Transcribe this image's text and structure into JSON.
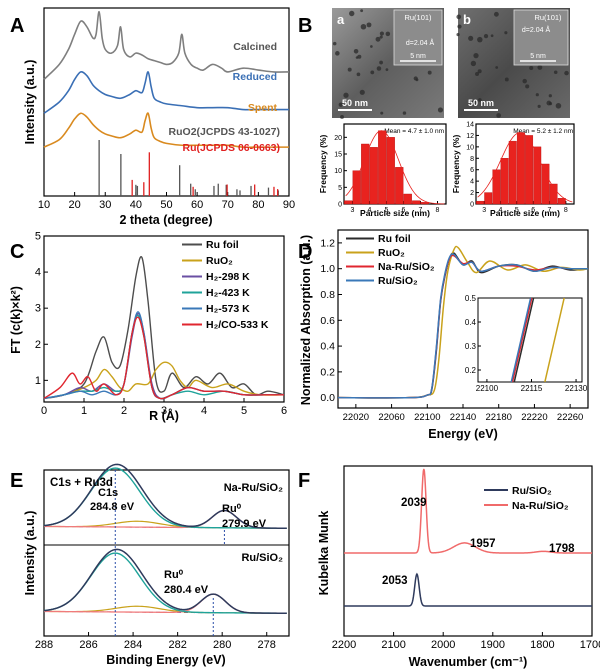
{
  "panel_letters": [
    "A",
    "B",
    "C",
    "D",
    "E",
    "F"
  ],
  "chart_data": [
    {
      "panel": "A",
      "type": "line",
      "xlabel": "2 theta (degree)",
      "ylabel": "Intensity (a.u.)",
      "xlim": [
        10,
        90
      ],
      "xticks": [
        10,
        20,
        30,
        40,
        50,
        60,
        70,
        80,
        90
      ],
      "series": [
        {
          "name": "Calcined",
          "color": "#7f7f7f",
          "x": [
            10,
            15,
            18,
            20,
            22,
            24,
            26,
            27,
            28,
            29,
            30,
            32,
            34,
            35,
            36,
            38,
            40,
            42,
            44,
            46,
            48,
            50,
            52,
            54,
            55,
            56,
            58,
            60,
            62,
            65,
            68,
            70,
            75,
            80,
            85,
            90
          ],
          "y": [
            0.62,
            0.7,
            0.78,
            0.86,
            0.93,
            0.9,
            0.84,
            0.86,
            0.98,
            0.84,
            0.78,
            0.76,
            0.8,
            0.9,
            0.78,
            0.74,
            0.76,
            0.75,
            0.73,
            0.72,
            0.71,
            0.7,
            0.71,
            0.76,
            0.86,
            0.76,
            0.7,
            0.68,
            0.67,
            0.7,
            0.68,
            0.66,
            0.68,
            0.67,
            0.66,
            0.66
          ]
        },
        {
          "name": "Reduced",
          "color": "#3a6fb5",
          "x": [
            10,
            15,
            18,
            20,
            22,
            24,
            26,
            28,
            30,
            32,
            35,
            38,
            40,
            42,
            43,
            44,
            45,
            46,
            48,
            50,
            55,
            60,
            65,
            70,
            75,
            80,
            85,
            90
          ],
          "y": [
            0.44,
            0.5,
            0.56,
            0.62,
            0.66,
            0.64,
            0.59,
            0.56,
            0.54,
            0.53,
            0.52,
            0.54,
            0.56,
            0.55,
            0.6,
            0.66,
            0.58,
            0.52,
            0.5,
            0.49,
            0.48,
            0.47,
            0.47,
            0.47,
            0.46,
            0.46,
            0.46,
            0.46
          ]
        },
        {
          "name": "Spent",
          "color": "#d98a1f",
          "x": [
            10,
            15,
            18,
            20,
            22,
            24,
            26,
            28,
            30,
            32,
            35,
            38,
            40,
            42,
            43,
            44,
            45,
            46,
            48,
            50,
            55,
            60,
            65,
            70,
            75,
            80,
            85,
            90
          ],
          "y": [
            0.26,
            0.3,
            0.36,
            0.41,
            0.44,
            0.42,
            0.38,
            0.35,
            0.33,
            0.32,
            0.31,
            0.33,
            0.35,
            0.34,
            0.4,
            0.44,
            0.36,
            0.31,
            0.29,
            0.28,
            0.27,
            0.27,
            0.27,
            0.27,
            0.26,
            0.26,
            0.26,
            0.26
          ]
        }
      ],
      "reference_labels": [
        "RuO2(JCPDS 43-1027)",
        "Ru(JCPDS 06-0663)"
      ],
      "reference_colors": [
        "#555555",
        "#e02020"
      ],
      "ref_ruo2": {
        "x": [
          28.0,
          35.1,
          40.0,
          40.5,
          54.3,
          57.9,
          59.4,
          65.5,
          66.9,
          69.5,
          73.0,
          74.0,
          77.6,
          83.3,
          86.5
        ],
        "h": [
          1.0,
          0.75,
          0.2,
          0.18,
          0.55,
          0.22,
          0.12,
          0.18,
          0.22,
          0.2,
          0.12,
          0.1,
          0.18,
          0.15,
          0.1
        ]
      },
      "ref_ru": {
        "x": [
          38.4,
          42.2,
          44.0,
          58.3,
          69.4,
          78.4,
          84.7,
          85.9
        ],
        "h": [
          0.35,
          0.3,
          0.95,
          0.2,
          0.25,
          0.25,
          0.2,
          0.15
        ]
      }
    },
    {
      "panel": "B",
      "type": "bar",
      "sub_labels": [
        "a",
        "b"
      ],
      "image_labels": [
        "Ru(101)",
        "d=2.04 Å",
        "5 nm",
        "50 nm"
      ],
      "histograms": [
        {
          "mean_label": "Mean = 4.7 ± 1.0 nm",
          "xlabel": "Particle size (nm)",
          "ylabel": "Frequency (%)",
          "xticks": [
            3,
            4,
            5,
            6,
            7,
            8
          ],
          "yticks": [
            0,
            5,
            10,
            15,
            20
          ],
          "ylim": [
            0,
            24
          ],
          "bin_centers": [
            2.75,
            3.25,
            3.75,
            4.25,
            4.75,
            5.25,
            5.75,
            6.25,
            6.75,
            7.25
          ],
          "values": [
            1,
            10,
            18,
            17,
            22,
            20,
            11,
            3,
            1,
            0.5
          ],
          "fit_mu": 4.7,
          "fit_sigma": 1.0
        },
        {
          "mean_label": "Mean = 5.2 ± 1.2 nm",
          "xlabel": "Particle size (nm)",
          "ylabel": "Frequency (%)",
          "xticks": [
            3,
            4,
            5,
            6,
            7,
            8
          ],
          "yticks": [
            0,
            2,
            4,
            6,
            8,
            10,
            12,
            14
          ],
          "ylim": [
            0,
            14
          ],
          "bin_centers": [
            2.75,
            3.25,
            3.75,
            4.25,
            4.75,
            5.25,
            5.75,
            6.25,
            6.75,
            7.25,
            7.75
          ],
          "values": [
            0.5,
            2,
            6,
            8,
            11,
            12.5,
            12,
            10,
            7,
            3.5,
            1
          ],
          "fit_mu": 5.2,
          "fit_sigma": 1.2
        }
      ]
    },
    {
      "panel": "C",
      "type": "line",
      "xlabel": "R (Å)",
      "ylabel": "FT (c(k)×k²)",
      "xlim": [
        0,
        6
      ],
      "ylim": [
        0.4,
        5
      ],
      "xticks": [
        0,
        1,
        2,
        3,
        4,
        5,
        6
      ],
      "yticks": [
        1,
        2,
        3,
        4,
        5
      ],
      "series": [
        {
          "name": "Ru foil",
          "color": "#4d4d4d",
          "x": [
            0,
            0.5,
            1.0,
            1.3,
            1.5,
            1.7,
            1.9,
            2.1,
            2.3,
            2.45,
            2.6,
            2.8,
            3.0,
            3.2,
            3.5,
            3.8,
            4.1,
            4.4,
            4.7,
            5.0,
            5.3,
            5.6,
            6.0
          ],
          "y": [
            0.5,
            0.6,
            0.9,
            1.8,
            2.2,
            1.5,
            1.4,
            2.4,
            3.9,
            4.4,
            3.2,
            1.0,
            0.7,
            1.2,
            0.8,
            1.1,
            0.9,
            1.2,
            0.8,
            0.9,
            0.6,
            0.7,
            0.6
          ]
        },
        {
          "name": "RuO₂",
          "color": "#c9a21b",
          "x": [
            0,
            0.5,
            1.0,
            1.3,
            1.5,
            1.7,
            1.9,
            2.1,
            2.3,
            2.6,
            2.8,
            3.0,
            3.2,
            3.4,
            3.6,
            3.8,
            4.2,
            4.6,
            5.0,
            5.4,
            6.0
          ],
          "y": [
            0.5,
            0.6,
            0.8,
            1.0,
            1.3,
            1.1,
            0.8,
            0.7,
            0.9,
            0.9,
            1.3,
            1.5,
            1.4,
            1.0,
            0.8,
            1.0,
            0.8,
            0.9,
            0.7,
            0.6,
            0.6
          ]
        },
        {
          "name": "H₂-298 K",
          "color": "#6a4fa3",
          "x": [
            0,
            0.5,
            0.9,
            1.2,
            1.5,
            1.8,
            2.0,
            2.2,
            2.35,
            2.5,
            2.7,
            2.9,
            3.2,
            3.6,
            4.0,
            4.5,
            5.0,
            5.5,
            6.0
          ],
          "y": [
            0.5,
            0.6,
            0.8,
            0.7,
            0.9,
            0.7,
            0.9,
            2.2,
            2.85,
            2.3,
            0.9,
            0.5,
            0.6,
            0.8,
            0.7,
            0.7,
            0.6,
            0.6,
            0.6
          ]
        },
        {
          "name": "H₂-423 K",
          "color": "#1fa39a",
          "x": [
            0,
            0.5,
            0.9,
            1.2,
            1.5,
            1.8,
            2.0,
            2.2,
            2.35,
            2.5,
            2.7,
            2.9,
            3.2,
            3.6,
            4.0,
            4.5,
            5.0,
            5.5,
            6.0
          ],
          "y": [
            0.5,
            0.6,
            0.7,
            0.7,
            0.8,
            0.7,
            0.9,
            2.3,
            2.8,
            2.2,
            0.8,
            0.5,
            0.6,
            0.7,
            0.6,
            0.7,
            0.6,
            0.6,
            0.6
          ]
        },
        {
          "name": "H₂-573 K",
          "color": "#3a78b8",
          "x": [
            0,
            0.5,
            0.9,
            1.2,
            1.5,
            1.8,
            2.0,
            2.2,
            2.35,
            2.5,
            2.7,
            2.9,
            3.2,
            3.6,
            4.0,
            4.5,
            5.0,
            5.5,
            6.0
          ],
          "y": [
            0.5,
            0.6,
            0.7,
            0.6,
            0.7,
            0.6,
            0.9,
            2.3,
            2.9,
            2.3,
            0.8,
            0.5,
            0.6,
            0.8,
            0.7,
            0.7,
            0.6,
            0.6,
            0.6
          ]
        },
        {
          "name": "H₂/CO-533 K",
          "color": "#e0262f",
          "x": [
            0,
            0.4,
            0.7,
            0.9,
            1.1,
            1.3,
            1.5,
            1.8,
            2.0,
            2.2,
            2.35,
            2.5,
            2.7,
            2.9,
            3.2,
            3.6,
            4.0,
            4.5,
            5.0,
            5.5,
            6.0
          ],
          "y": [
            0.5,
            0.8,
            1.2,
            0.9,
            1.1,
            0.7,
            0.9,
            0.6,
            0.9,
            2.3,
            2.75,
            2.2,
            0.8,
            0.5,
            0.6,
            0.8,
            0.7,
            0.7,
            0.6,
            0.6,
            0.6
          ]
        }
      ]
    },
    {
      "panel": "D",
      "type": "line",
      "xlabel": "Energy (eV)",
      "ylabel": "Normalized Absorption (a.u.)",
      "xlim": [
        22000,
        22280
      ],
      "ylim": [
        -0.08,
        1.3
      ],
      "xticks": [
        22020,
        22060,
        22100,
        22140,
        22180,
        22220,
        22260
      ],
      "yticks": [
        0.0,
        0.2,
        0.4,
        0.6,
        0.8,
        1.0,
        1.2
      ],
      "series": [
        {
          "name": "Ru foil",
          "color": "#2b2b2b",
          "x": [
            22000,
            22080,
            22100,
            22105,
            22110,
            22115,
            22120,
            22125,
            22130,
            22140,
            22150,
            22160,
            22180,
            22200,
            22220,
            22240,
            22260,
            22280
          ],
          "y": [
            0,
            0,
            0.02,
            0.06,
            0.35,
            0.75,
            0.95,
            1.08,
            1.12,
            1.03,
            1.06,
            0.97,
            1.02,
            1.03,
            0.98,
            1.02,
            0.99,
            1.0
          ]
        },
        {
          "name": "RuO₂",
          "color": "#c9a21b",
          "x": [
            22000,
            22080,
            22100,
            22108,
            22113,
            22118,
            22123,
            22130,
            22135,
            22145,
            22155,
            22170,
            22190,
            22210,
            22230,
            22250,
            22270,
            22280
          ],
          "y": [
            0,
            0,
            0.02,
            0.06,
            0.3,
            0.7,
            0.98,
            1.15,
            1.16,
            1.05,
            0.97,
            1.06,
            0.99,
            1.03,
            0.98,
            1.01,
            0.99,
            1.0
          ]
        },
        {
          "name": "Na-Ru/SiO₂",
          "color": "#e0262f",
          "x": [
            22000,
            22080,
            22100,
            22105,
            22110,
            22115,
            22120,
            22125,
            22130,
            22140,
            22150,
            22160,
            22180,
            22200,
            22220,
            22240,
            22260,
            22280
          ],
          "y": [
            0,
            0,
            0.02,
            0.07,
            0.37,
            0.76,
            0.96,
            1.08,
            1.1,
            1.04,
            1.05,
            0.98,
            1.02,
            1.02,
            0.99,
            1.01,
            1.0,
            1.0
          ]
        },
        {
          "name": "Ru/SiO₂",
          "color": "#3a78b8",
          "x": [
            22000,
            22080,
            22100,
            22105,
            22110,
            22115,
            22120,
            22125,
            22130,
            22140,
            22150,
            22160,
            22180,
            22200,
            22220,
            22240,
            22260,
            22280
          ],
          "y": [
            0,
            0,
            0.02,
            0.07,
            0.38,
            0.77,
            0.97,
            1.09,
            1.11,
            1.03,
            1.05,
            0.98,
            1.02,
            1.03,
            0.98,
            1.01,
            1.0,
            1.0
          ]
        }
      ],
      "inset": {
        "xlim": [
          22097,
          22132
        ],
        "ylim": [
          0.15,
          0.5
        ],
        "xticks": [
          22100,
          22115,
          22130
        ],
        "yticks": [
          0.2,
          0.3,
          0.4,
          0.5
        ]
      }
    },
    {
      "panel": "E",
      "type": "line",
      "xlabel": "Binding Energy (eV)",
      "ylabel": "Intensity (a.u.)",
      "xlim": [
        288,
        277
      ],
      "xticks": [
        288,
        286,
        284,
        282,
        280,
        278
      ],
      "title_left": "C1s + Ru3d",
      "top": {
        "label": "Na-Ru/SiO₂",
        "c1s_label": "C1s",
        "c1s_value": "284.8 eV",
        "ru_label": "Ru⁰",
        "ru_value": "279.9 eV",
        "ru_pos": 279.9
      },
      "bottom": {
        "label": "Ru/SiO₂",
        "ru_label": "Ru⁰",
        "ru_value": "280.4 eV",
        "ru_pos": 280.4
      },
      "c1s_pos": 284.8,
      "component_colors": {
        "envelope": "#2e3a5c",
        "c1s": "#1fa39a",
        "ru": "#f07b7b",
        "minor": "#c9a21b",
        "bg": "#7a3fa0"
      }
    },
    {
      "panel": "F",
      "type": "line",
      "xlabel": "Wavenumber (cm⁻¹)",
      "ylabel": "Kubelka Munk",
      "xlim": [
        2200,
        1700
      ],
      "xticks": [
        2200,
        2100,
        2000,
        1900,
        1800,
        1700
      ],
      "series": [
        {
          "name": "Ru/SiO₂",
          "color": "#2e3a5c",
          "peak": 2053
        },
        {
          "name": "Na-Ru/SiO₂",
          "color": "#f06a6a",
          "peaks": [
            2039,
            1957,
            1798
          ]
        }
      ],
      "peak_labels": [
        "2039",
        "1957",
        "1798",
        "2053"
      ]
    }
  ]
}
